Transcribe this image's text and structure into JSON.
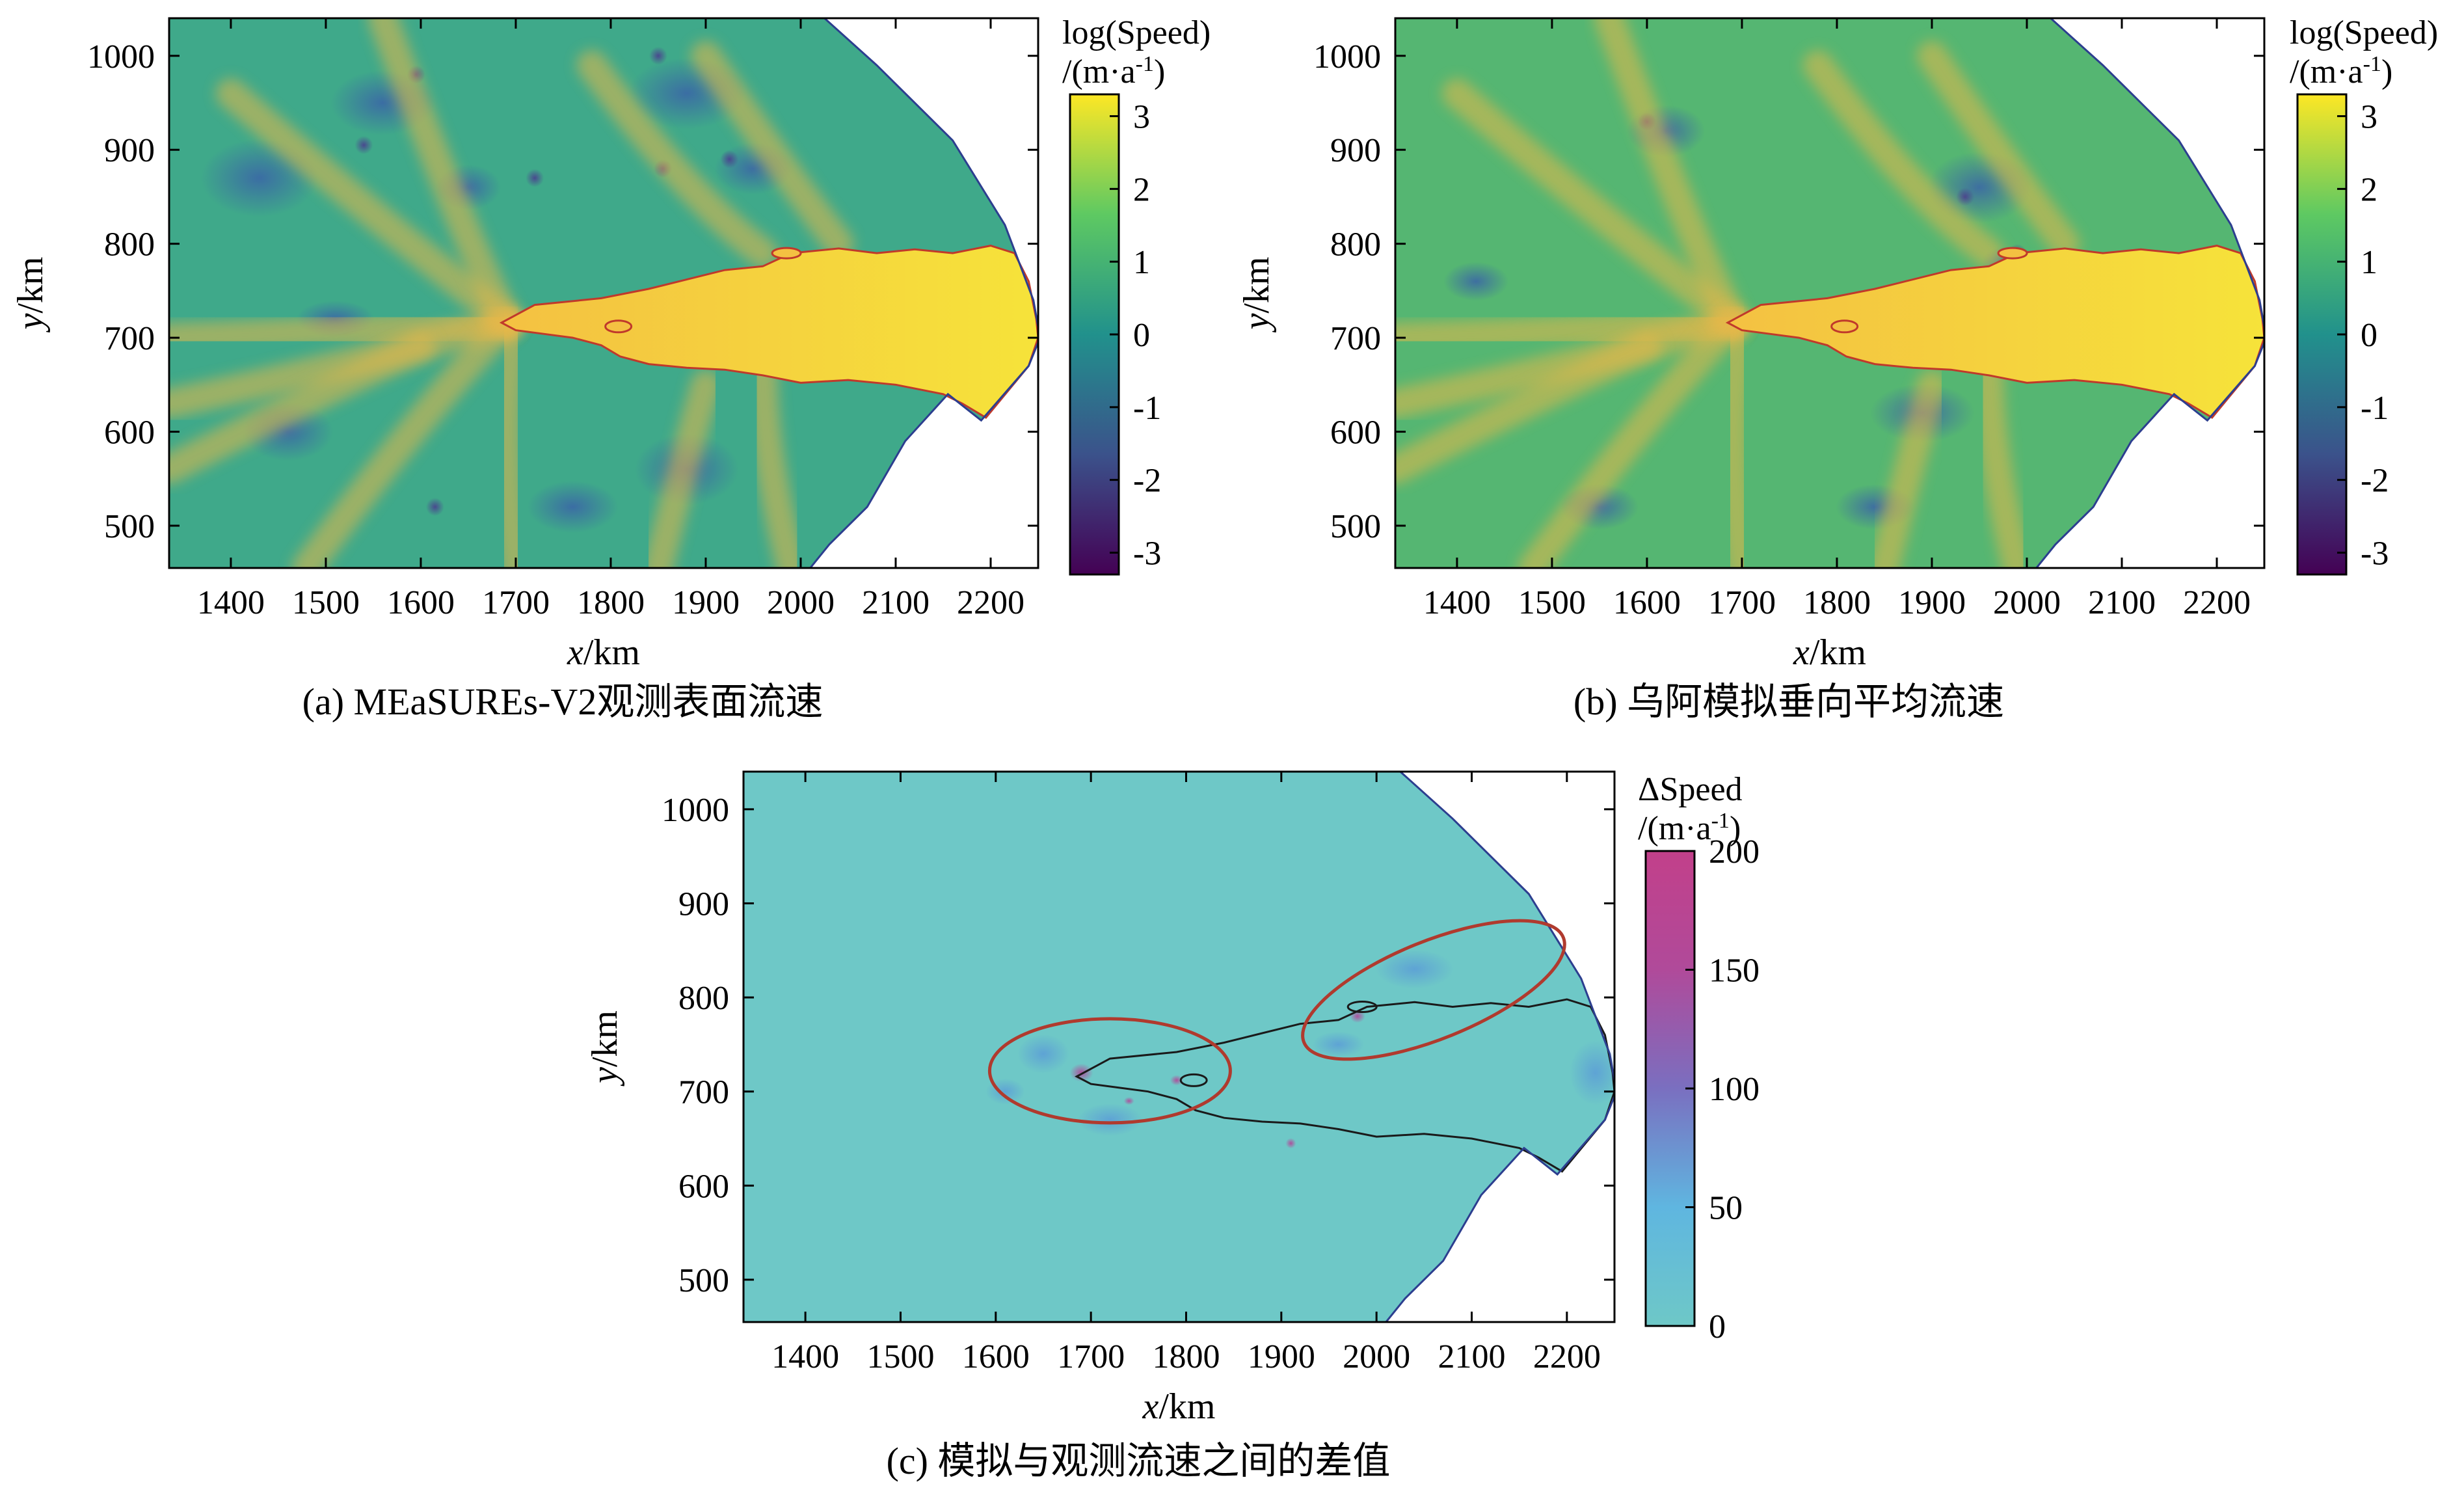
{
  "chart_data": [
    {
      "type": "heatmap",
      "caption": "(a) MEaSUREs-V2观测表面流速",
      "xlabel_var": "x",
      "xlabel_unit": "/km",
      "ylabel_var": "y",
      "ylabel_unit": "/km",
      "xlim": [
        1335,
        2250
      ],
      "ylim": [
        455,
        1040
      ],
      "xticks": [
        1400,
        1500,
        1600,
        1700,
        1800,
        1900,
        2000,
        2100,
        2200
      ],
      "yticks": [
        500,
        600,
        700,
        800,
        900,
        1000
      ],
      "colorbar": {
        "title_line1": "log(Speed)",
        "title_line2_pre": "/(m·a",
        "title_line2_sup": "-1",
        "title_line2_post": ")",
        "range": [
          -3.3,
          3.3
        ],
        "ticks": [
          "3",
          "2",
          "1",
          "0",
          "-1",
          "-2",
          "-3"
        ],
        "tick_values": [
          3,
          2,
          1,
          0,
          -1,
          -2,
          -3
        ],
        "colormap": "viridis"
      }
    },
    {
      "type": "heatmap",
      "caption": "(b) 乌阿模拟垂向平均流速",
      "xlabel_var": "x",
      "xlabel_unit": "/km",
      "ylabel_var": "y",
      "ylabel_unit": "/km",
      "xlim": [
        1335,
        2250
      ],
      "ylim": [
        455,
        1040
      ],
      "xticks": [
        1400,
        1500,
        1600,
        1700,
        1800,
        1900,
        2000,
        2100,
        2200
      ],
      "yticks": [
        500,
        600,
        700,
        800,
        900,
        1000
      ],
      "colorbar": {
        "title_line1": "log(Speed)",
        "title_line2_pre": "/(m·a",
        "title_line2_sup": "-1",
        "title_line2_post": ")",
        "range": [
          -3.3,
          3.3
        ],
        "ticks": [
          "3",
          "2",
          "1",
          "0",
          "-1",
          "-2",
          "-3"
        ],
        "tick_values": [
          3,
          2,
          1,
          0,
          -1,
          -2,
          -3
        ],
        "colormap": "viridis"
      }
    },
    {
      "type": "heatmap",
      "caption": "(c) 模拟与观测流速之间的差值",
      "xlabel_var": "x",
      "xlabel_unit": "/km",
      "ylabel_var": "y",
      "ylabel_unit": "/km",
      "xlim": [
        1335,
        2250
      ],
      "ylim": [
        455,
        1040
      ],
      "xticks": [
        1400,
        1500,
        1600,
        1700,
        1800,
        1900,
        2000,
        2100,
        2200
      ],
      "yticks": [
        500,
        600,
        700,
        800,
        900,
        1000
      ],
      "colorbar": {
        "title_line1": "ΔSpeed",
        "title_line2_pre": "/(m·a",
        "title_line2_sup": "-1",
        "title_line2_post": ")",
        "range": [
          0,
          200
        ],
        "ticks": [
          "200",
          "150",
          "100",
          "50",
          "0"
        ],
        "tick_values": [
          200,
          150,
          100,
          50,
          0
        ],
        "colormap": "cyan-to-magenta"
      },
      "annotations": [
        {
          "shape": "ellipse",
          "center": [
            1720,
            722
          ],
          "color": "#b03a2e"
        },
        {
          "shape": "ellipse",
          "center": [
            2060,
            808
          ],
          "color": "#b03a2e"
        }
      ]
    }
  ],
  "colors": {
    "viridis": [
      "#440154",
      "#3b528b",
      "#21918c",
      "#5ec962",
      "#fde725"
    ],
    "diff": [
      "#6ec8c7",
      "#5fb6e0",
      "#7a6fc0",
      "#b04a9a",
      "#c2408a"
    ],
    "grounding_line_ab": "#c0392b",
    "grounding_line_c": "#1a1a1a",
    "ice_edge": "#2c3e8f",
    "annotation": "#b03a2e"
  }
}
